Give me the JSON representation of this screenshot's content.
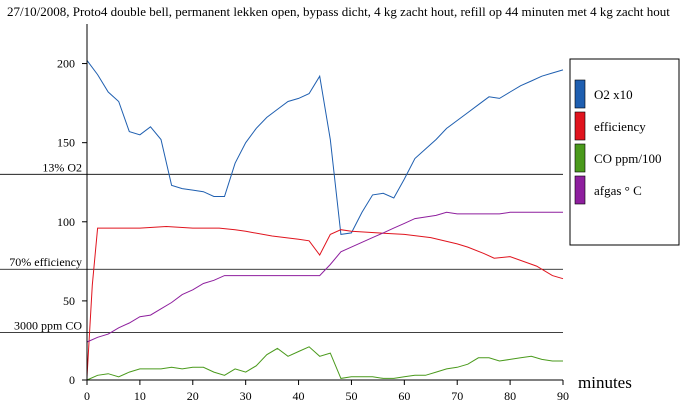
{
  "chart_data": {
    "type": "line",
    "title": "27/10/2008, Proto4 double bell, permanent lekken open, bypass dicht, 4 kg zacht hout, refill op 44 minuten met 4 kg zacht hout",
    "xlabel": "minutes",
    "ylabel": "",
    "xlim": [
      0,
      90
    ],
    "ylim": [
      0,
      225
    ],
    "x_ticks": [
      0,
      10,
      20,
      30,
      40,
      50,
      60,
      70,
      80,
      90
    ],
    "y_ticks": [
      0,
      50,
      100,
      150,
      200
    ],
    "grid": false,
    "legend_position": "right",
    "reference_lines": [
      {
        "label": "13% O2",
        "y": 130
      },
      {
        "label": "70% efficiency",
        "y": 70
      },
      {
        "label": "3000 ppm CO",
        "y": 30
      }
    ],
    "series": [
      {
        "name": "O2 x10",
        "color": "#1f5fb0",
        "x": [
          0,
          2,
          4,
          6,
          8,
          10,
          12,
          14,
          16,
          18,
          20,
          22,
          24,
          26,
          28,
          30,
          32,
          34,
          36,
          38,
          40,
          42,
          44,
          46,
          48,
          50,
          52,
          54,
          56,
          58,
          60,
          62,
          64,
          66,
          68,
          70,
          72,
          74,
          76,
          78,
          80,
          82,
          84,
          86,
          88,
          90
        ],
        "values": [
          202,
          193,
          182,
          176,
          157,
          155,
          160,
          152,
          123,
          121,
          120,
          119,
          116,
          116,
          137,
          150,
          159,
          166,
          171,
          176,
          178,
          181,
          192,
          152,
          92,
          93,
          106,
          117,
          118,
          115,
          127,
          140,
          146,
          152,
          159,
          164,
          169,
          174,
          179,
          178,
          182,
          186,
          189,
          192,
          194,
          196
        ]
      },
      {
        "name": "efficiency",
        "color": "#e0141e",
        "x": [
          0,
          1,
          2,
          5,
          10,
          15,
          20,
          25,
          28,
          30,
          35,
          40,
          42,
          44,
          46,
          48,
          50,
          55,
          60,
          65,
          70,
          72,
          75,
          77,
          80,
          85,
          88,
          90
        ],
        "values": [
          2,
          60,
          96,
          96,
          96,
          97,
          96,
          96,
          95,
          94,
          91,
          89,
          88,
          79,
          92,
          95,
          94,
          93,
          92,
          90,
          86,
          84,
          80,
          77,
          78,
          72,
          66,
          64
        ]
      },
      {
        "name": "CO ppm/100",
        "color": "#4a9a1c",
        "x": [
          0,
          2,
          4,
          6,
          8,
          10,
          12,
          14,
          16,
          18,
          20,
          22,
          24,
          26,
          28,
          30,
          32,
          34,
          36,
          38,
          40,
          42,
          44,
          46,
          48,
          50,
          52,
          54,
          56,
          58,
          60,
          62,
          64,
          66,
          68,
          70,
          72,
          74,
          76,
          78,
          80,
          82,
          84,
          86,
          88,
          90
        ],
        "values": [
          0,
          3,
          4,
          2,
          5,
          7,
          7,
          7,
          8,
          7,
          8,
          8,
          5,
          3,
          7,
          5,
          9,
          16,
          20,
          15,
          18,
          21,
          15,
          17,
          1,
          2,
          2,
          2,
          1,
          1,
          2,
          3,
          3,
          5,
          7,
          8,
          10,
          14,
          14,
          12,
          13,
          14,
          15,
          13,
          12,
          12
        ]
      },
      {
        "name": "afgas ° C",
        "color": "#8e1f9e",
        "x": [
          0,
          2,
          4,
          6,
          8,
          10,
          12,
          14,
          16,
          18,
          20,
          22,
          24,
          26,
          28,
          30,
          32,
          34,
          36,
          38,
          40,
          42,
          44,
          46,
          48,
          50,
          52,
          54,
          56,
          58,
          60,
          62,
          64,
          66,
          68,
          70,
          72,
          74,
          76,
          78,
          80,
          82,
          84,
          86,
          88,
          90
        ],
        "values": [
          24,
          27,
          29,
          33,
          36,
          40,
          41,
          45,
          49,
          54,
          57,
          61,
          63,
          66,
          66,
          66,
          66,
          66,
          66,
          66,
          66,
          66,
          66,
          73,
          81,
          84,
          87,
          90,
          93,
          96,
          99,
          102,
          103,
          104,
          106,
          105,
          105,
          105,
          105,
          105,
          106,
          106,
          106,
          106,
          106,
          106
        ]
      }
    ]
  }
}
